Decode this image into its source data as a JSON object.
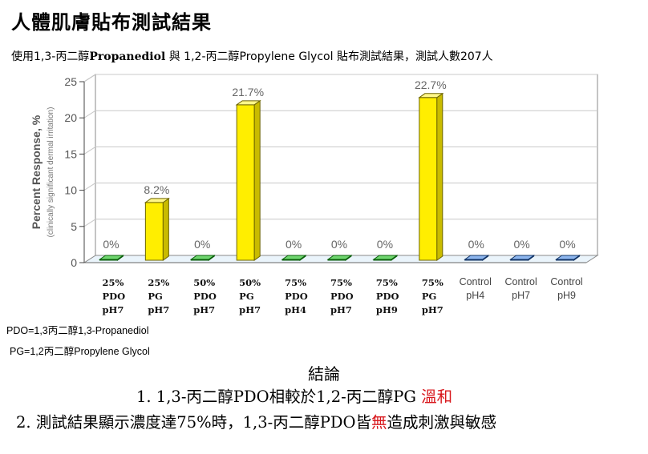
{
  "header": {
    "title": "人體肌膚貼布測試結果",
    "subtitle_prefix": "使用1,3-丙二醇",
    "subtitle_bold": "Propanediol",
    "subtitle_suffix": " 與 1,2-丙二醇Propylene Glycol 貼布測試結果，測試人數207人"
  },
  "chart_data": {
    "type": "bar",
    "ylabel": "Percent Response, %",
    "ylabel_sub": "(clinically significant dermal irritation)",
    "ylim": [
      0,
      25
    ],
    "yticks": [
      0,
      5,
      10,
      15,
      20,
      25
    ],
    "grid": true,
    "categories": [
      [
        "25%",
        "PDO",
        "pH7"
      ],
      [
        "25%",
        "PG",
        "pH7"
      ],
      [
        "50%",
        "PDO",
        "pH7"
      ],
      [
        "50%",
        "PG",
        "pH7"
      ],
      [
        "75%",
        "PDO",
        "pH4"
      ],
      [
        "75%",
        "PDO",
        "pH7"
      ],
      [
        "75%",
        "PDO",
        "pH9"
      ],
      [
        "75%",
        "PG",
        "pH7"
      ],
      [
        "Control",
        "pH4"
      ],
      [
        "Control",
        "pH7"
      ],
      [
        "Control",
        "pH9"
      ]
    ],
    "values": [
      0,
      8.2,
      0,
      21.7,
      0,
      0,
      0,
      22.7,
      0,
      0,
      0
    ],
    "value_labels": [
      "0%",
      "8.2%",
      "0%",
      "21.7%",
      "0%",
      "0%",
      "0%",
      "22.7%",
      "0%",
      "0%",
      "0%"
    ],
    "colors": {
      "pdo": "#1fae1f",
      "pg": "#ffee00",
      "control": "#2f73d6"
    },
    "bar_kind": [
      "pdo",
      "pg",
      "pdo",
      "pg",
      "pdo",
      "pdo",
      "pdo",
      "pg",
      "control",
      "control",
      "control"
    ]
  },
  "legend": {
    "pdo_def": "PDO=1,3丙二醇1,3-Propanediol",
    "pg_def": "PG=1,2丙二醇Propylene Glycol"
  },
  "conclusion": {
    "heading": "結論",
    "line1_main": "1. 1,3-丙二醇PDO相較於1,2-丙二醇PG ",
    "line1_red": "溫和",
    "line2_main": "2. 測試結果顯示濃度達75%時，1,3-丙二醇PDO皆",
    "line2_red": "無",
    "line2_tail": "造成刺激與敏感"
  }
}
